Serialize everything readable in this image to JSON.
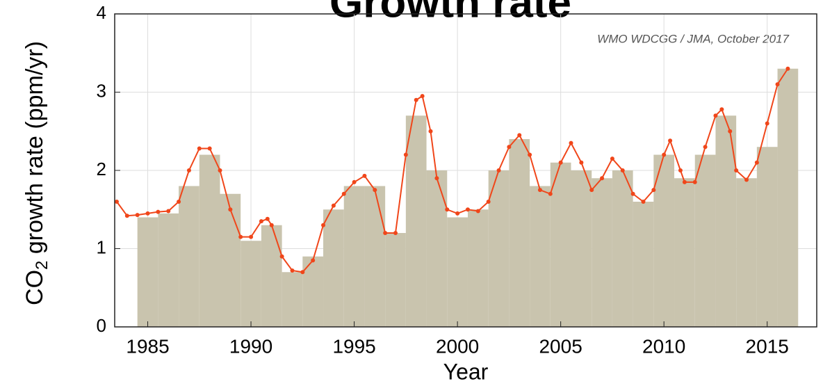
{
  "chart_data": {
    "type": "bar+line",
    "title": "Growth rate",
    "annotation": "WMO WDCGG / JMA, October 2017",
    "ylabel": {
      "main": "CO",
      "sub": "2",
      "rest": " growth rate (ppm/yr)"
    },
    "xlabel": "Year",
    "xlim": [
      1983.4,
      2017.4
    ],
    "ylim": [
      0,
      4
    ],
    "xticks": [
      1985,
      1990,
      1995,
      2000,
      2005,
      2010,
      2015
    ],
    "yticks": [
      0,
      1,
      2,
      3,
      4
    ],
    "grid": true,
    "bars": {
      "color": "#c9c4ae",
      "x": [
        1985,
        1986,
        1987,
        1988,
        1989,
        1990,
        1991,
        1992,
        1993,
        1994,
        1995,
        1996,
        1997,
        1998,
        1999,
        2000,
        2001,
        2002,
        2003,
        2004,
        2005,
        2006,
        2007,
        2008,
        2009,
        2010,
        2011,
        2012,
        2013,
        2014,
        2015,
        2016
      ],
      "values": [
        1.4,
        1.45,
        1.8,
        2.2,
        1.7,
        1.1,
        1.3,
        0.7,
        0.9,
        1.5,
        1.8,
        1.8,
        1.2,
        2.7,
        2.0,
        1.4,
        1.5,
        2.0,
        2.4,
        1.8,
        2.1,
        2.0,
        1.9,
        2.0,
        1.6,
        2.2,
        1.9,
        2.2,
        2.7,
        1.9,
        2.3,
        3.3
      ]
    },
    "curve": {
      "color": "#f0461a",
      "x": [
        1983.5,
        1984,
        1984.5,
        1985,
        1985.5,
        1986,
        1986.5,
        1987,
        1987.5,
        1988,
        1988.5,
        1989,
        1989.5,
        1990,
        1990.5,
        1990.8,
        1991,
        1991.5,
        1992,
        1992.5,
        1993,
        1993.5,
        1994,
        1994.5,
        1995,
        1995.5,
        1996,
        1996.5,
        1997,
        1997.5,
        1998,
        1998.3,
        1998.7,
        1999,
        1999.5,
        2000,
        2000.5,
        2001,
        2001.5,
        2002,
        2002.5,
        2003,
        2003.5,
        2004,
        2004.5,
        2005,
        2005.5,
        2006,
        2006.5,
        2007,
        2007.5,
        2008,
        2008.5,
        2009,
        2009.5,
        2010,
        2010.3,
        2010.8,
        2011,
        2011.5,
        2012,
        2012.5,
        2012.8,
        2013.2,
        2013.5,
        2014,
        2014.5,
        2015,
        2015.5,
        2016
      ],
      "values": [
        1.6,
        1.42,
        1.43,
        1.45,
        1.47,
        1.48,
        1.6,
        2.0,
        2.28,
        2.28,
        2.0,
        1.5,
        1.15,
        1.15,
        1.35,
        1.38,
        1.3,
        0.9,
        0.72,
        0.7,
        0.85,
        1.3,
        1.55,
        1.7,
        1.85,
        1.93,
        1.75,
        1.2,
        1.2,
        2.2,
        2.9,
        2.95,
        2.5,
        1.9,
        1.5,
        1.45,
        1.5,
        1.48,
        1.6,
        2.0,
        2.3,
        2.45,
        2.2,
        1.75,
        1.7,
        2.1,
        2.35,
        2.1,
        1.75,
        1.9,
        2.15,
        2.0,
        1.7,
        1.6,
        1.75,
        2.2,
        2.38,
        2.0,
        1.85,
        1.85,
        2.3,
        2.7,
        2.78,
        2.5,
        2.0,
        1.88,
        2.1,
        2.6,
        3.1,
        3.3
      ]
    }
  }
}
